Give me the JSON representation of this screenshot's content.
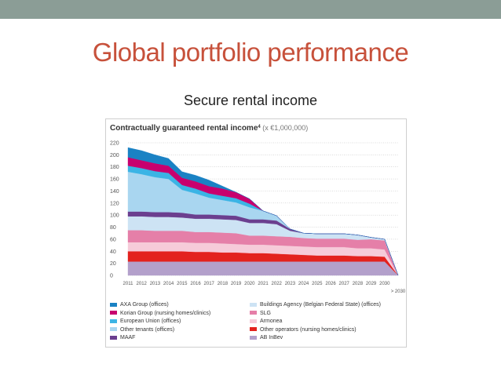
{
  "slide": {
    "title": "Global portfolio performance",
    "subtitle": "Secure rental income"
  },
  "chart_data": {
    "type": "area",
    "title": "Contractually guaranteed rental income",
    "title_footnote": "4",
    "unit_label": "(x €1,000,000)",
    "ylim": [
      0,
      220
    ],
    "y_ticks": [
      0,
      20,
      40,
      60,
      80,
      100,
      120,
      140,
      160,
      180,
      200,
      220
    ],
    "grid": true,
    "categories": [
      "2011",
      "2012",
      "2013",
      "2014",
      "2015",
      "2016",
      "2017",
      "2018",
      "2019",
      "2020",
      "2021",
      "2022",
      "2023",
      "2024",
      "2025",
      "2026",
      "2027",
      "2028",
      "2029",
      "2030",
      "> 2030"
    ],
    "x_label_extra": "> 2030",
    "series": [
      {
        "name": "AB InBev",
        "color": "#b3a0cb",
        "values": [
          23,
          23,
          23,
          23,
          23,
          23,
          23,
          23,
          23,
          23,
          23,
          23,
          23,
          23,
          23,
          23,
          23,
          23,
          23,
          23,
          0
        ]
      },
      {
        "name": "Other operators (nursing homes/clinics)",
        "color": "#e3221e",
        "values": [
          17,
          17,
          17,
          17,
          17,
          16,
          16,
          15,
          15,
          14,
          14,
          13,
          12,
          11,
          10,
          10,
          10,
          9,
          9,
          8,
          0
        ]
      },
      {
        "name": "Armonea",
        "color": "#f6cbd9",
        "values": [
          15,
          15,
          15,
          15,
          15,
          15,
          15,
          15,
          14,
          14,
          14,
          14,
          14,
          14,
          14,
          14,
          14,
          13,
          13,
          12,
          0
        ]
      },
      {
        "name": "SLG",
        "color": "#e57fa8",
        "values": [
          20,
          20,
          19,
          19,
          19,
          18,
          18,
          18,
          18,
          15,
          15,
          15,
          15,
          14,
          14,
          14,
          14,
          14,
          15,
          15,
          0
        ]
      },
      {
        "name": "Buildings Agency (Belgian Federal State) (offices)",
        "color": "#cde3f4",
        "values": [
          23,
          23,
          23,
          23,
          22,
          22,
          22,
          22,
          22,
          21,
          21,
          20,
          10,
          8,
          8,
          8,
          8,
          8,
          3,
          2,
          0
        ]
      },
      {
        "name": "MAAF",
        "color": "#6b3f8f",
        "values": [
          8,
          8,
          8,
          8,
          8,
          7,
          7,
          7,
          7,
          6,
          6,
          6,
          3,
          0,
          0,
          0,
          0,
          0,
          0,
          0,
          0
        ]
      },
      {
        "name": "Other tenants (offices)",
        "color": "#a9d6f0",
        "values": [
          66,
          62,
          58,
          55,
          38,
          35,
          28,
          25,
          22,
          20,
          14,
          8,
          0,
          0,
          0,
          0,
          0,
          0,
          0,
          0,
          0
        ]
      },
      {
        "name": "European Union (offices)",
        "color": "#3bb4e5",
        "values": [
          10,
          10,
          10,
          10,
          8,
          8,
          7,
          7,
          7,
          6,
          0,
          0,
          0,
          0,
          0,
          0,
          0,
          0,
          0,
          0,
          0
        ]
      },
      {
        "name": "Korian Group (nursing homes/clinics)",
        "color": "#c8006e",
        "values": [
          14,
          13,
          13,
          12,
          12,
          12,
          12,
          12,
          10,
          8,
          0,
          0,
          0,
          0,
          0,
          0,
          0,
          0,
          0,
          0,
          0
        ]
      },
      {
        "name": "AXA Group (offices)",
        "color": "#1a82c4",
        "values": [
          16,
          16,
          14,
          12,
          10,
          10,
          10,
          4,
          0,
          0,
          0,
          0,
          0,
          0,
          0,
          0,
          0,
          0,
          0,
          0,
          0
        ]
      }
    ],
    "legend": {
      "placement": "bottom",
      "columns": [
        [
          "AXA Group (offices)",
          "Korian Group (nursing homes/clinics)",
          "European Union (offices)",
          "Other tenants (offices)",
          "MAAF"
        ],
        [
          "Buildings Agency (Belgian Federal State) (offices)",
          "SLG",
          "Armonea",
          "Other operators (nursing homes/clinics)",
          "AB InBev"
        ]
      ]
    }
  }
}
